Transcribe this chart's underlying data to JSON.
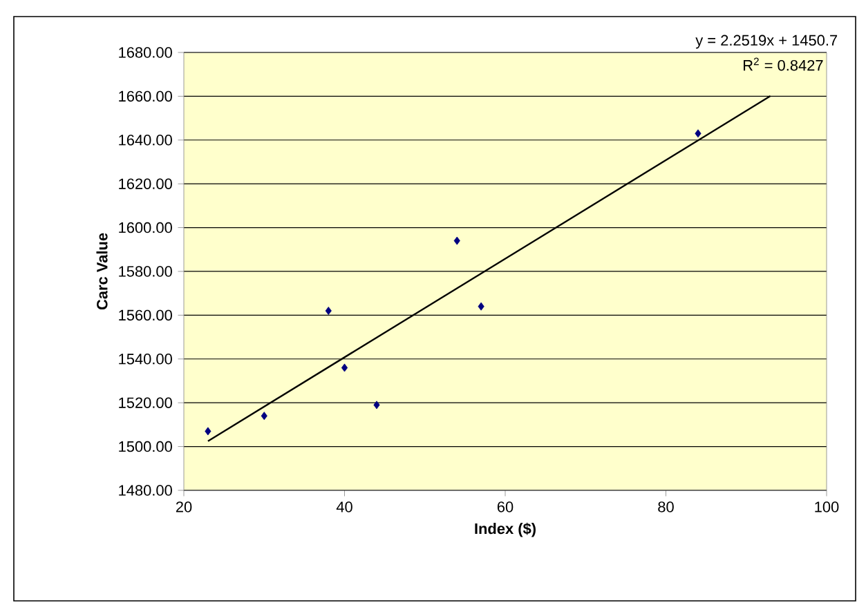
{
  "chart_data": {
    "type": "scatter",
    "xlabel": "Index ($)",
    "ylabel": "Carc Value",
    "xlim": [
      20,
      100
    ],
    "xticks": [
      20,
      40,
      60,
      80,
      100
    ],
    "ylim": [
      1480,
      1680
    ],
    "yticks": [
      {
        "value": 1480,
        "label": "1480.00"
      },
      {
        "value": 1500,
        "label": "1500.00"
      },
      {
        "value": 1520,
        "label": "1520.00"
      },
      {
        "value": 1540,
        "label": "1540.00"
      },
      {
        "value": 1560,
        "label": "1560.00"
      },
      {
        "value": 1580,
        "label": "1580.00"
      },
      {
        "value": 1600,
        "label": "1600.00"
      },
      {
        "value": 1620,
        "label": "1620.00"
      },
      {
        "value": 1640,
        "label": "1640.00"
      },
      {
        "value": 1660,
        "label": "1660.00"
      },
      {
        "value": 1680,
        "label": "1680.00"
      }
    ],
    "grid": "y",
    "series": [
      {
        "marker": "diamond",
        "color": "#000080",
        "x": [
          23,
          30,
          38,
          40,
          44,
          54,
          57,
          84
        ],
        "values": [
          1507,
          1514,
          1562,
          1536,
          1519,
          1594,
          1564,
          1643
        ]
      },
      {
        "type": "line",
        "marker": "none",
        "color": "#000000",
        "x": [
          23,
          93
        ],
        "values": [
          1502.5,
          1660.1
        ]
      }
    ],
    "annotations": [
      "y = 2.2519x + 1450.7",
      "R$^{2}$ = 0.8427"
    ]
  }
}
